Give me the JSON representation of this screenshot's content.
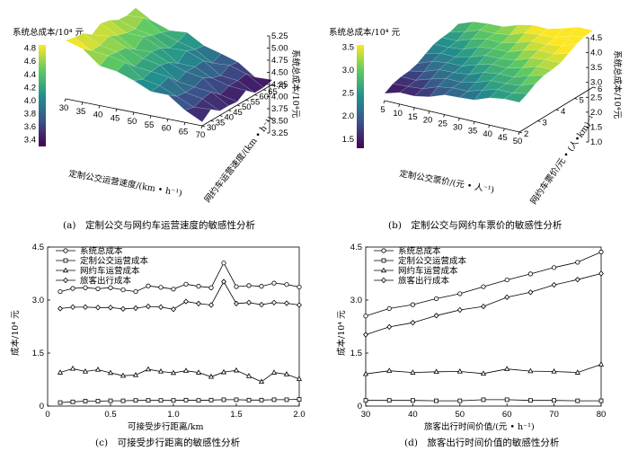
{
  "chart_data": [
    {
      "panel": "a",
      "type": "surface3d",
      "caption": "(a)　定制公交与网约车运营速度的敏感性分析",
      "colorbar": {
        "title": "系统总成本/10⁴ 元",
        "ticks": [
          "4.8",
          "4.6",
          "4.4",
          "4.2",
          "4.0",
          "3.8",
          "3.6",
          "3.4"
        ],
        "range": [
          3.3,
          4.85
        ]
      },
      "zlabel": "系统总成本/10⁴元",
      "zticks": [
        "5.25",
        "5.00",
        "4.75",
        "4.50",
        "4.25",
        "4.00",
        "3.75",
        "3.50",
        "3.25"
      ],
      "xlabel": "定制公交运营速度/(km • h⁻¹)",
      "xticks": [
        "30",
        "35",
        "40",
        "45",
        "50",
        "55",
        "60",
        "65",
        "70"
      ],
      "ylabel": "网约车运营速度/(km • h⁻¹)",
      "yticks": [
        "30",
        "35",
        "40",
        "45",
        "50",
        "55",
        "60",
        "65",
        "70"
      ],
      "zlim": [
        3.25,
        5.25
      ],
      "colormap": "viridis"
    },
    {
      "panel": "b",
      "type": "surface3d",
      "caption": "(b)　定制公交与网约车票价的敏感性分析",
      "colorbar": {
        "title": "系统总成本/10⁴ 元",
        "ticks": [
          "3.5",
          "3.0",
          "2.5",
          "2.0",
          "1.5"
        ],
        "range": [
          1.3,
          3.55
        ]
      },
      "zlabel": "系统总成本/10⁴元",
      "zticks": [
        "4.5",
        "4.0",
        "3.5",
        "3.0",
        "2.5",
        "2.0",
        "1.5",
        "1.0"
      ],
      "xlabel": "定制公交票价/(元 • 人⁻¹)",
      "xticks": [
        "5",
        "10",
        "15",
        "20",
        "25",
        "30",
        "35",
        "40",
        "45",
        "50"
      ],
      "ylabel": "网约车票价/元 • (人•km)⁻¹",
      "yticks": [
        "2",
        "3",
        "4",
        "5",
        "6"
      ],
      "zlim": [
        1.0,
        4.5
      ],
      "colormap": "viridis"
    },
    {
      "panel": "c",
      "type": "line",
      "caption": "(c)　可接受步行距离的敏感性分析",
      "xlabel": "可接受步行距离/km",
      "ylabel": "成本/10⁴ 元",
      "xlim": [
        0,
        2.0
      ],
      "ylim": [
        0,
        4.5
      ],
      "xticks": [
        "0",
        "0.5",
        "1.0",
        "1.5",
        "2.0"
      ],
      "yticks": [
        "0",
        "1.5",
        "3.0",
        "4.5"
      ],
      "x": [
        0.1,
        0.2,
        0.3,
        0.4,
        0.5,
        0.6,
        0.7,
        0.8,
        0.9,
        1.0,
        1.1,
        1.2,
        1.3,
        1.4,
        1.5,
        1.6,
        1.7,
        1.8,
        1.9,
        2.0
      ],
      "series": [
        {
          "name": "系统总成本",
          "marker": "circle",
          "values": [
            3.24,
            3.33,
            3.35,
            3.32,
            3.35,
            3.29,
            3.24,
            3.4,
            3.36,
            3.31,
            3.45,
            3.39,
            3.35,
            4.05,
            3.38,
            3.41,
            3.39,
            3.48,
            3.44,
            3.37
          ]
        },
        {
          "name": "定制公交运营成本",
          "marker": "square",
          "values": [
            0.1,
            0.12,
            0.14,
            0.14,
            0.15,
            0.15,
            0.16,
            0.16,
            0.16,
            0.16,
            0.17,
            0.16,
            0.17,
            0.18,
            0.18,
            0.17,
            0.17,
            0.18,
            0.18,
            0.19
          ]
        },
        {
          "name": "网约车运营成本",
          "marker": "triangle",
          "values": [
            0.95,
            1.06,
            0.98,
            1.03,
            0.94,
            0.86,
            0.88,
            1.04,
            0.98,
            0.94,
            1.0,
            0.95,
            0.83,
            0.96,
            1.01,
            0.85,
            0.69,
            0.95,
            0.9,
            0.77
          ]
        },
        {
          "name": "旅客出行成本",
          "marker": "diamond",
          "values": [
            2.76,
            2.8,
            2.8,
            2.79,
            2.79,
            2.75,
            2.77,
            2.82,
            2.8,
            2.74,
            2.96,
            2.9,
            2.86,
            3.52,
            2.9,
            2.93,
            2.87,
            2.93,
            2.91,
            2.86
          ]
        }
      ]
    },
    {
      "panel": "d",
      "type": "line",
      "caption": "(d)　旅客出行时间价值的敏感性分析",
      "xlabel": "旅客出行时间价值/(元 • h⁻¹)",
      "ylabel": "成本/10⁴ 元",
      "xlim": [
        30,
        80
      ],
      "ylim": [
        0,
        4.5
      ],
      "xticks": [
        "30",
        "40",
        "50",
        "60",
        "70",
        "80"
      ],
      "yticks": [
        "0",
        "1.5",
        "3.0",
        "4.5"
      ],
      "x": [
        30,
        35,
        40,
        45,
        50,
        55,
        60,
        65,
        70,
        75,
        80
      ],
      "series": [
        {
          "name": "系统总成本",
          "marker": "circle",
          "values": [
            2.55,
            2.76,
            2.87,
            3.04,
            3.18,
            3.38,
            3.57,
            3.74,
            3.92,
            4.07,
            4.36
          ]
        },
        {
          "name": "定制公交运营成本",
          "marker": "square",
          "values": [
            0.16,
            0.16,
            0.16,
            0.15,
            0.15,
            0.18,
            0.18,
            0.16,
            0.16,
            0.15,
            0.15
          ]
        },
        {
          "name": "网约车运营成本",
          "marker": "triangle",
          "values": [
            0.91,
            1.0,
            0.95,
            0.97,
            0.98,
            0.92,
            1.05,
            0.99,
            0.98,
            0.95,
            1.18
          ]
        },
        {
          "name": "旅客出行成本",
          "marker": "diamond",
          "values": [
            2.02,
            2.24,
            2.36,
            2.56,
            2.72,
            2.82,
            3.08,
            3.22,
            3.43,
            3.58,
            3.75
          ]
        }
      ]
    }
  ]
}
